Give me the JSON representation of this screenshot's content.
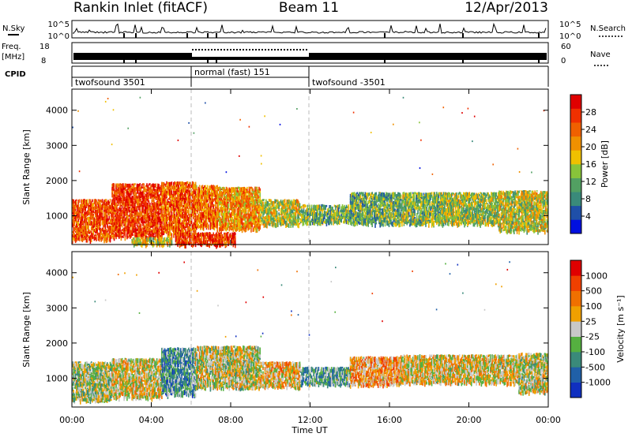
{
  "header": {
    "station": "Rankin Inlet (fitACF)",
    "beam": "Beam 11",
    "date": "12/Apr/2013"
  },
  "top_panels": {
    "nsky_label": "N.Sky",
    "nsky_left_ticks": [
      "10^5",
      "10^0"
    ],
    "nsky_right_ticks": [
      "10^5",
      "10^0"
    ],
    "nsearch_label": "N.Search",
    "freq_label_line1": "Freq.",
    "freq_label_line2": "[MHz]",
    "freq_ticks": [
      "18",
      "8"
    ],
    "nave_ticks": [
      "60",
      "0"
    ],
    "nave_label": "Nave",
    "cpid_label": "CPID",
    "cpid_segments": [
      {
        "label": "twofsound 3501",
        "start": 0,
        "end": 6
      },
      {
        "label": "normal (fast) 151",
        "start": 6,
        "end": 12
      },
      {
        "label": "twofsound -3501",
        "start": 12,
        "end": 24
      }
    ]
  },
  "x_axis": {
    "title": "Time UT",
    "tick_labels": [
      "00:00",
      "04:00",
      "08:00",
      "12:00",
      "16:00",
      "20:00",
      "00:00"
    ]
  },
  "power_colorbar": {
    "title": "Power [dB]",
    "tick_labels": [
      "28",
      "24",
      "20",
      "16",
      "12",
      "8",
      "4"
    ],
    "colors": [
      "#0010e0",
      "#1f4fa8",
      "#3a8a7a",
      "#52a062",
      "#88c43a",
      "#f0c000",
      "#f09000",
      "#f06000",
      "#f03000",
      "#e00000"
    ]
  },
  "velocity_colorbar": {
    "title": "Velocity [m s⁻¹]",
    "tick_labels": [
      "1000",
      "500",
      "100",
      "25",
      "-25",
      "-100",
      "-500",
      "-1000"
    ],
    "colors": [
      "#1030c0",
      "#2060a8",
      "#3a8a7a",
      "#55b040",
      "#c8c8c8",
      "#f0a000",
      "#f07000",
      "#f04000",
      "#e00000"
    ]
  },
  "chart_data": [
    {
      "type": "heatmap",
      "title": "",
      "xlabel": "",
      "ylabel": "Slant Range [km]",
      "xlim": [
        0,
        24
      ],
      "ylim": [
        180,
        4600
      ],
      "y_ticks": [
        1000,
        2000,
        3000,
        4000
      ],
      "colorbar": "Power [dB]",
      "scatter_bands": [
        {
          "t0": 0.0,
          "t1": 2.0,
          "r0": 350,
          "r1": 1500,
          "level": 0.8
        },
        {
          "t0": 2.0,
          "t1": 4.5,
          "r0": 420,
          "r1": 1950,
          "level": 0.85
        },
        {
          "t0": 4.5,
          "t1": 6.2,
          "r0": 500,
          "r1": 2000,
          "level": 0.78
        },
        {
          "t0": 6.2,
          "t1": 7.3,
          "r0": 700,
          "r1": 1900,
          "level": 0.72
        },
        {
          "t0": 7.3,
          "t1": 9.5,
          "r0": 650,
          "r1": 1850,
          "level": 0.66
        },
        {
          "t0": 9.5,
          "t1": 11.5,
          "r0": 780,
          "r1": 1500,
          "level": 0.5
        },
        {
          "t0": 11.5,
          "t1": 14.0,
          "r0": 850,
          "r1": 1350,
          "level": 0.4
        },
        {
          "t0": 14.0,
          "t1": 16.5,
          "r0": 800,
          "r1": 1700,
          "level": 0.36
        },
        {
          "t0": 16.5,
          "t1": 18.5,
          "r0": 800,
          "r1": 1700,
          "level": 0.4
        },
        {
          "t0": 18.5,
          "t1": 21.5,
          "r0": 800,
          "r1": 1700,
          "level": 0.45
        },
        {
          "t0": 21.5,
          "t1": 24.0,
          "r0": 600,
          "r1": 1750,
          "level": 0.5
        },
        {
          "t0": 5.2,
          "t1": 8.2,
          "r0": 200,
          "r1": 560,
          "level": 0.85
        },
        {
          "t0": 3.0,
          "t1": 5.0,
          "r0": 220,
          "r1": 420,
          "level": 0.5
        }
      ]
    },
    {
      "type": "heatmap",
      "title": "",
      "xlabel": "Time UT",
      "ylabel": "Slant Range [km]",
      "xlim": [
        0,
        24
      ],
      "ylim": [
        180,
        4600
      ],
      "y_ticks": [
        1000,
        2000,
        3000,
        4000
      ],
      "colorbar": "Velocity [m s⁻¹]",
      "scatter_bands": [
        {
          "t0": 0.0,
          "t1": 2.0,
          "r0": 400,
          "r1": 1500,
          "level": 0.45
        },
        {
          "t0": 2.0,
          "t1": 4.5,
          "r0": 480,
          "r1": 1600,
          "level": 0.55
        },
        {
          "t0": 4.5,
          "t1": 6.2,
          "r0": 560,
          "r1": 1900,
          "level": 0.3
        },
        {
          "t0": 6.2,
          "t1": 9.5,
          "r0": 760,
          "r1": 1950,
          "level": 0.5
        },
        {
          "t0": 9.5,
          "t1": 11.5,
          "r0": 780,
          "r1": 1500,
          "level": 0.6
        },
        {
          "t0": 11.5,
          "t1": 14.0,
          "r0": 850,
          "r1": 1350,
          "level": 0.35
        },
        {
          "t0": 14.0,
          "t1": 16.5,
          "r0": 850,
          "r1": 1650,
          "level": 0.65
        },
        {
          "t0": 16.5,
          "t1": 22.5,
          "r0": 900,
          "r1": 1700,
          "level": 0.55
        },
        {
          "t0": 22.5,
          "t1": 24.0,
          "r0": 650,
          "r1": 1750,
          "level": 0.5
        }
      ]
    }
  ]
}
